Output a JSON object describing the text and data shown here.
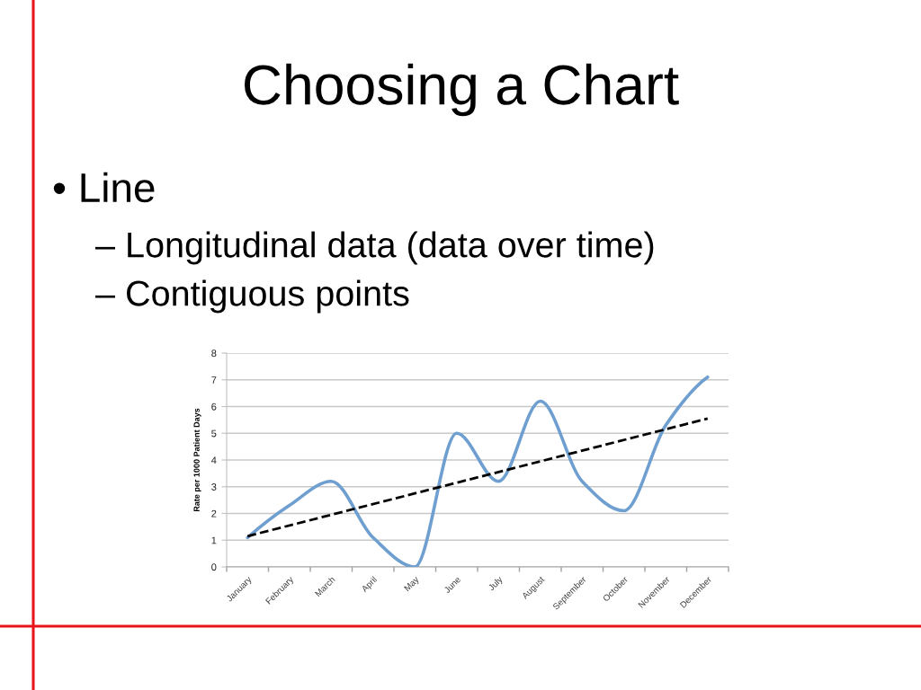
{
  "chart_data": {
    "type": "line",
    "title": "Choosing a Chart",
    "annotations": [
      "• Line",
      "– Longitudinal data (data over time)",
      "– Contiguous points"
    ],
    "ylabel": "Rate per 1000 Patient Days",
    "categories": [
      "January",
      "February",
      "March",
      "April",
      "May",
      "June",
      "July",
      "August",
      "September",
      "October",
      "November",
      "December"
    ],
    "series": [
      {
        "color": "#6f9fd0",
        "values": [
          1.1,
          2.3,
          3.2,
          1.1,
          0,
          5.0,
          3.2,
          6.2,
          3.2,
          2.1,
          5.3,
          7.1
        ]
      },
      {
        "type": "line",
        "x": [
          "January",
          "December"
        ],
        "values": [
          1.15,
          5.55
        ],
        "color": "#000000",
        "line_style": "dashed"
      }
    ],
    "ylim": [
      0,
      8
    ],
    "yticks": [
      0,
      1,
      2,
      3,
      4,
      5,
      6,
      7,
      8
    ],
    "grid": "y"
  }
}
